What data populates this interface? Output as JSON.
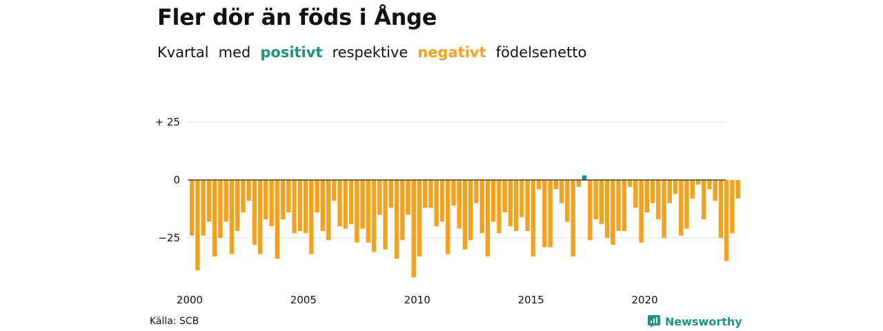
{
  "title": "Fler dör än föds i Ånge",
  "subtitle": {
    "part1": "Kvartal",
    "part2": "med",
    "positive": "positivt",
    "part3": "respektive",
    "negative": "negativt",
    "part4": "födelsenetto"
  },
  "source": "Källa: SCB",
  "brand": "Newsworthy",
  "colors": {
    "positive": "#1e9480",
    "negative": "#f4a11d",
    "grid": "#dddddd",
    "baseline": "#222222"
  },
  "chart_data": {
    "type": "bar",
    "title": "Fler dör än föds i Ånge",
    "xlabel": "",
    "ylabel": "",
    "ylim": [
      -42,
      25
    ],
    "y_ticks": [
      {
        "value": 25,
        "label": "+ 25"
      },
      {
        "value": 0,
        "label": "0"
      },
      {
        "value": -25,
        "label": "−25"
      }
    ],
    "x_ticks": [
      "2000",
      "2005",
      "2010",
      "2015",
      "2020"
    ],
    "grid": true,
    "series": [
      {
        "values": [
          -24,
          -39,
          -24,
          -18,
          -33,
          -25,
          -18,
          -32,
          -22,
          -14,
          -9,
          -28,
          -32,
          -17,
          -20,
          -34,
          -17,
          -14,
          -23,
          -22,
          -23,
          -32,
          -14,
          -22,
          -26,
          -9,
          -20,
          -21,
          -19,
          -27,
          -21,
          -27,
          -31,
          -15,
          -30,
          -12,
          -34,
          -26,
          -15,
          -42,
          -33,
          -12,
          -12,
          -20,
          -18,
          -32,
          -11,
          -21,
          -30,
          -26,
          -10,
          -23,
          -33,
          -18,
          -23,
          -14,
          -20,
          -22,
          -16,
          -22,
          -33,
          -4,
          -29,
          -29,
          -4,
          -10,
          -18,
          -33,
          -3,
          2,
          -26,
          -17,
          -19,
          -25,
          -28,
          -22,
          -22,
          -3,
          -12,
          -27,
          -14,
          -10,
          -17,
          -25,
          -10,
          -6,
          -24,
          -21,
          -8,
          -2,
          -17,
          -4,
          -9,
          -25,
          -35,
          -23,
          -8
        ]
      }
    ]
  }
}
